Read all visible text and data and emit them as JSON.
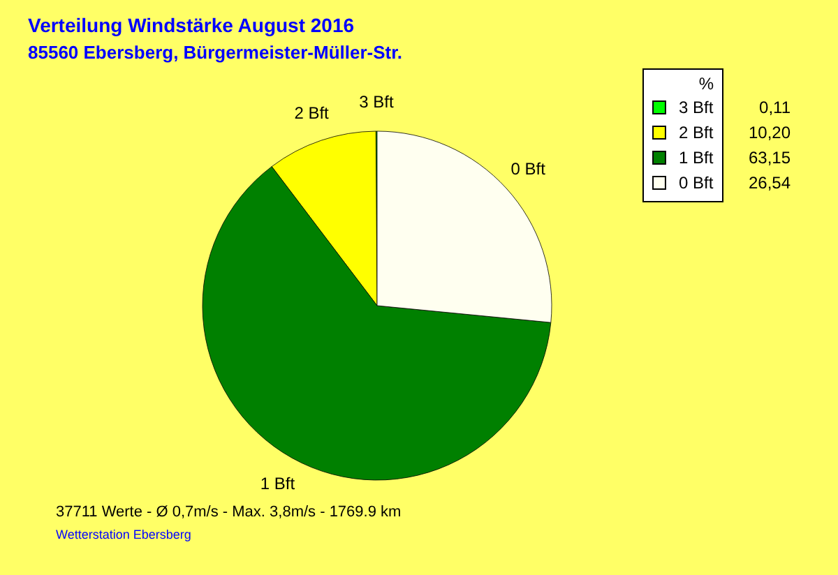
{
  "chart_data": {
    "type": "pie",
    "title": "Verteilung Windstärke  August 2016",
    "subtitle": "85560 Ebersberg, Bürgermeister-Müller-Str.",
    "categories": [
      "3 Bft",
      "2 Bft",
      "1 Bft",
      "0 Bft"
    ],
    "values": [
      0.11,
      10.2,
      63.15,
      26.54
    ],
    "colors": [
      "#00ff00",
      "#ffff00",
      "#008000",
      "#fffff0"
    ],
    "value_labels": [
      "0,11",
      "10,20",
      "63,15",
      "26,54"
    ],
    "legend_title": "%",
    "legend": "top right",
    "annotations": [
      "37711 Werte   -   Ø 0,7m/s  -  Max. 3,8m/s   -   1769.9 km",
      "Wetterstation Ebersberg"
    ]
  }
}
